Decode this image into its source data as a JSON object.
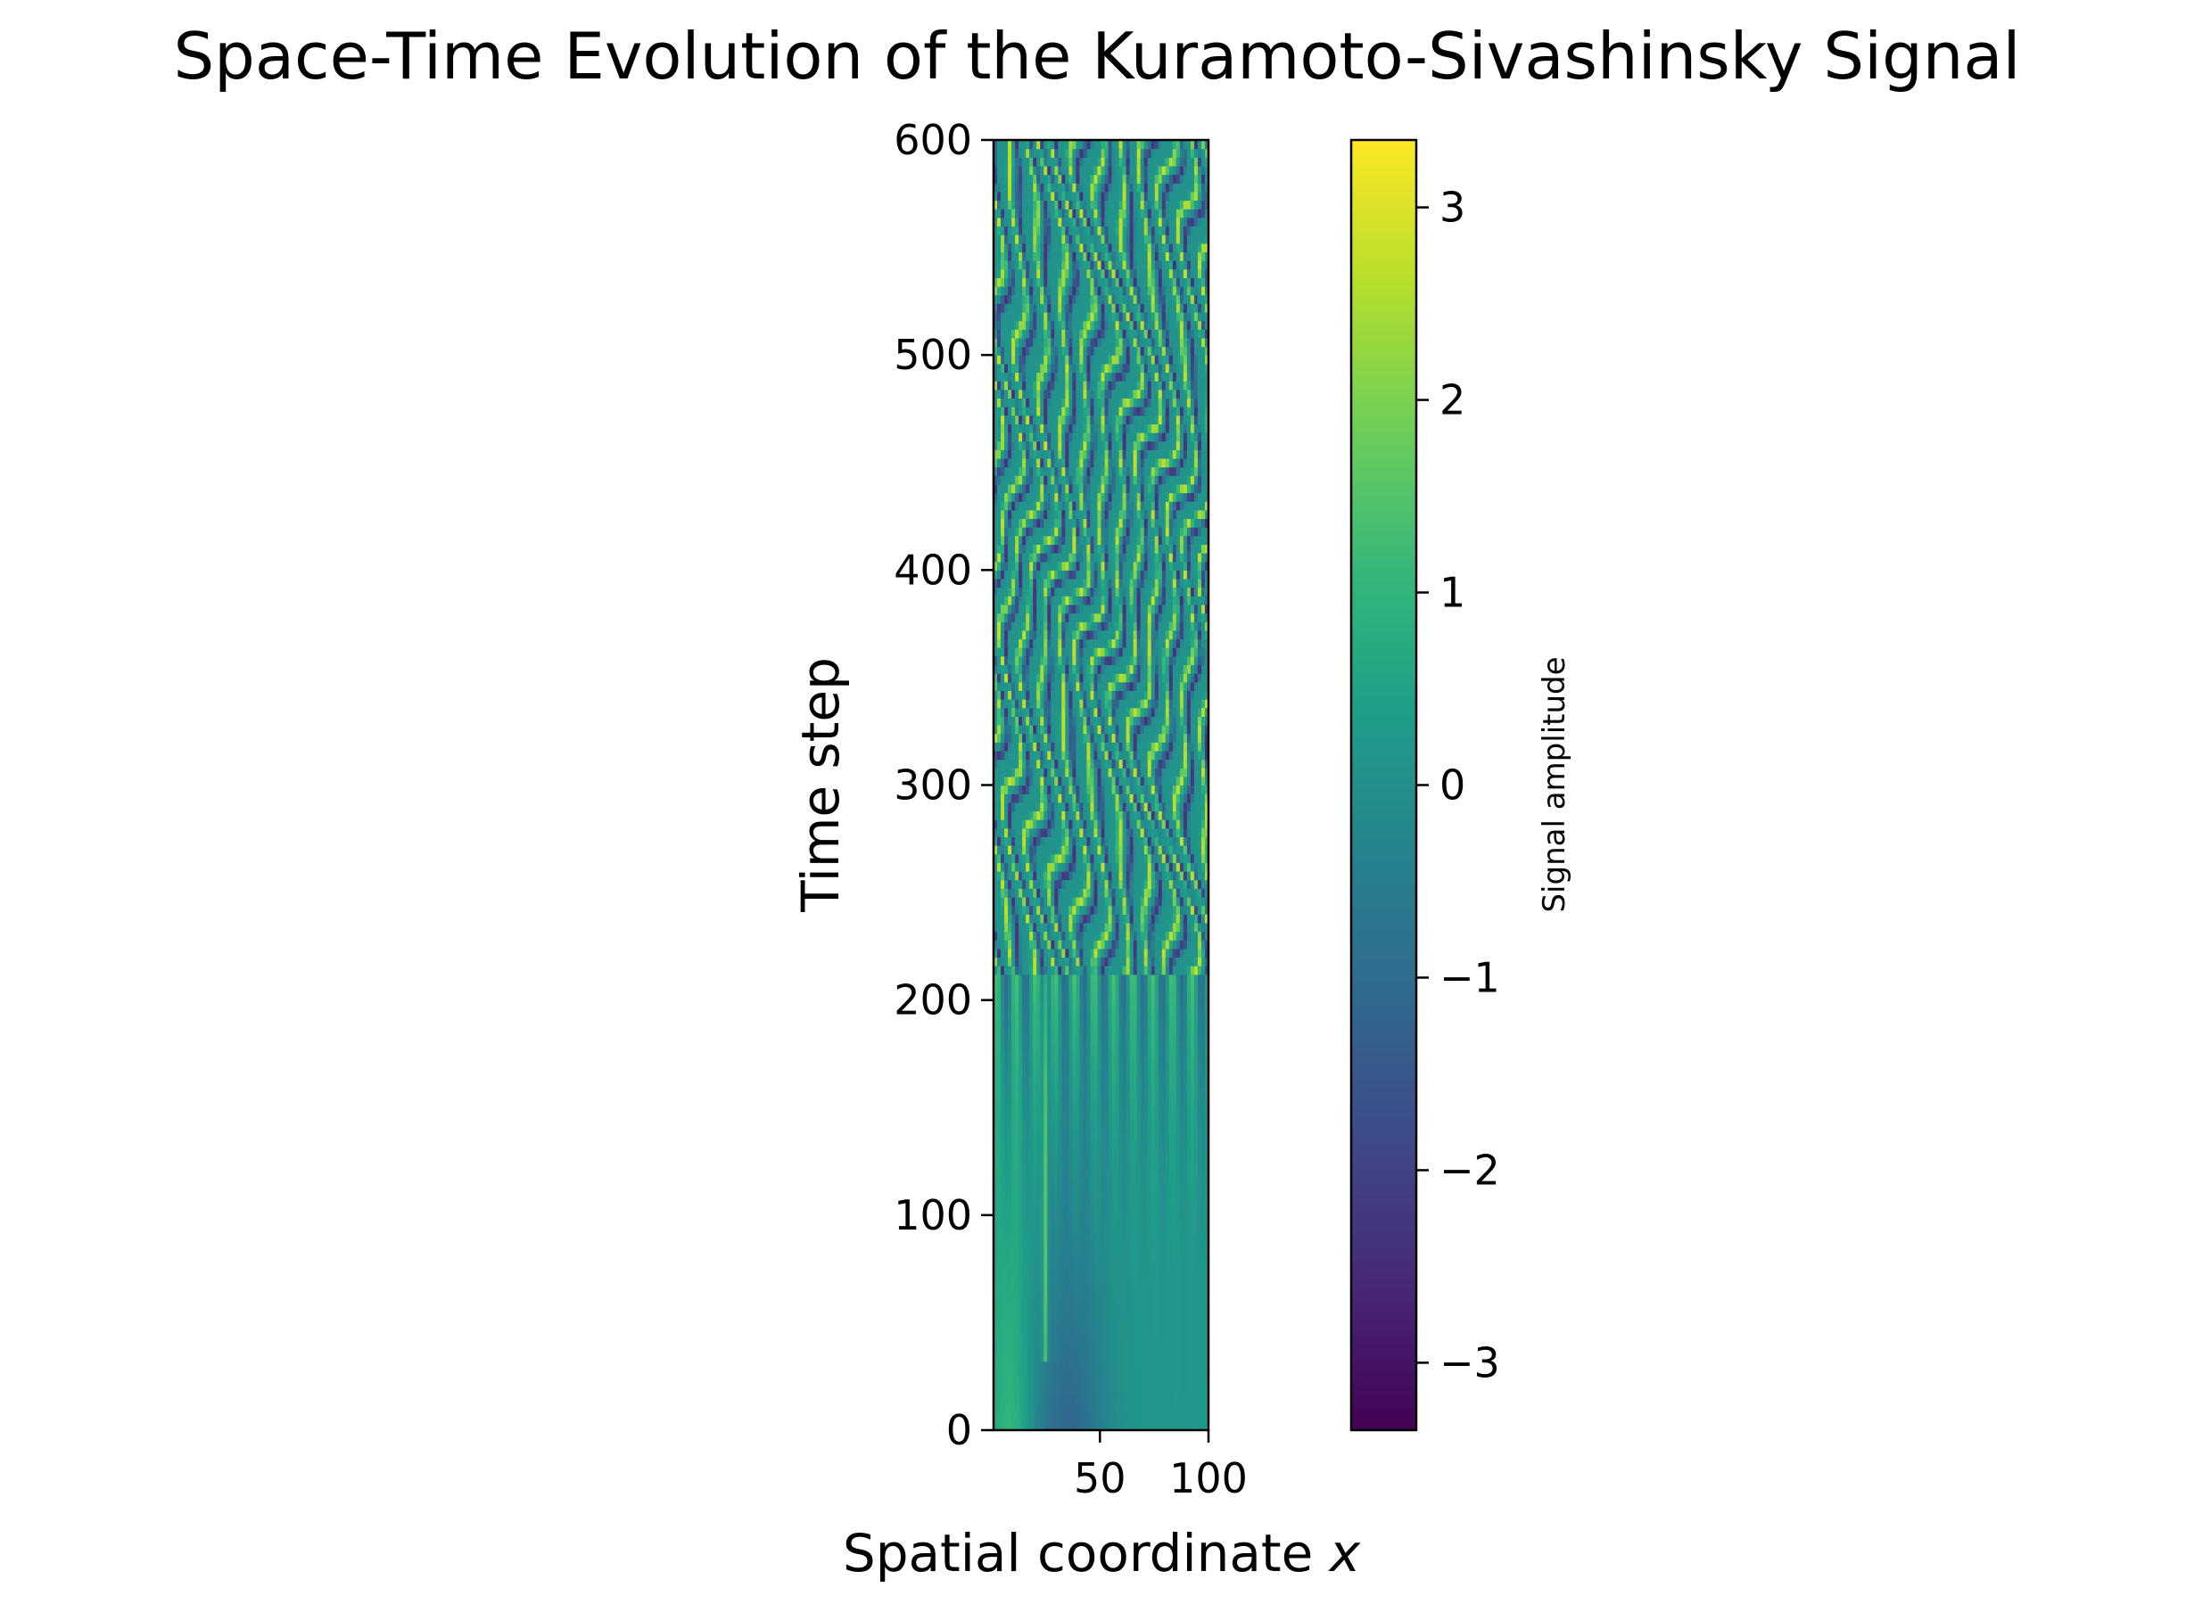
{
  "chart_data": {
    "type": "heatmap",
    "title": "Space-Time Evolution of the Kuramoto-Sivashinsky Signal",
    "xlabel_main": "Spatial coordinate ",
    "xlabel_var": "x",
    "ylabel": "Time step",
    "xlim": [
      1,
      100
    ],
    "ylim": [
      0,
      600
    ],
    "x_ticks": [
      {
        "value": 50,
        "label": "50"
      },
      {
        "value": 100,
        "label": "100"
      }
    ],
    "y_ticks": [
      {
        "value": 0,
        "label": "0"
      },
      {
        "value": 100,
        "label": "100"
      },
      {
        "value": 200,
        "label": "200"
      },
      {
        "value": 300,
        "label": "300"
      },
      {
        "value": 400,
        "label": "400"
      },
      {
        "value": 500,
        "label": "500"
      },
      {
        "value": 600,
        "label": "600"
      }
    ],
    "colorbar": {
      "label": "Signal amplitude",
      "colormap": "viridis",
      "vmin": -3.35,
      "vmax": 3.35,
      "ticks": [
        {
          "value": -3,
          "label": "−3"
        },
        {
          "value": -2,
          "label": "−2"
        },
        {
          "value": -1,
          "label": "−1"
        },
        {
          "value": 0,
          "label": "0"
        },
        {
          "value": 1,
          "label": "1"
        },
        {
          "value": 2,
          "label": "2"
        },
        {
          "value": 3,
          "label": "3"
        }
      ]
    },
    "colors": {
      "viridis": [
        "#440154",
        "#482878",
        "#3e4989",
        "#31688e",
        "#26828e",
        "#1f9e89",
        "#35b779",
        "#6ece58",
        "#b5de2b",
        "#fde725"
      ]
    }
  }
}
